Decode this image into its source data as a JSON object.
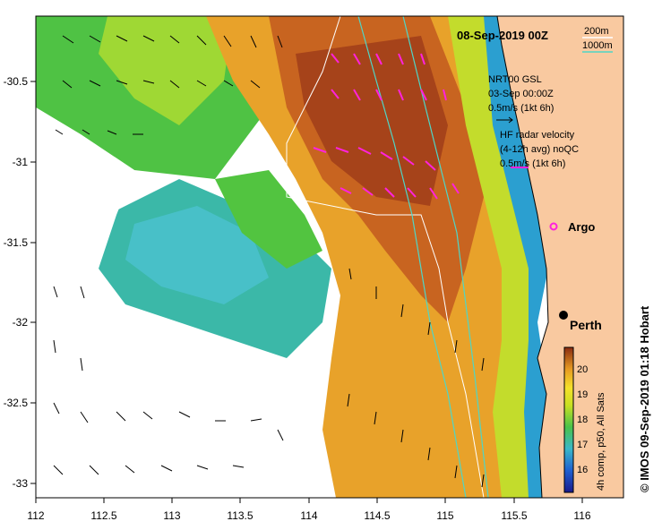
{
  "title": "08-Sep-2019 00Z",
  "depth_legend": {
    "label_200": "200m",
    "label_1000": "1000m",
    "color_200": "#ffffff",
    "color_1000": "#4fd6c6"
  },
  "model_legend": {
    "line1": "NRT00 GSL",
    "line2": "03-Sep 00:00Z",
    "line3": "0.5m/s (1kt 6h)"
  },
  "radar_legend": {
    "line1": "HF radar velocity",
    "line2": "(4-12h avg) noQC",
    "line3": "0.5m/s (1kt 6h)",
    "arrow_color": "#ff22dd"
  },
  "argo_label": "Argo",
  "city_label": "Perth",
  "credit": "© IMOS 09-Sep-2019 01:18 Hobart",
  "colorbar": {
    "label": "4h comp, p50, All Sats",
    "ticks": [
      "20",
      "19",
      "18",
      "17",
      "16"
    ],
    "min": 15.5,
    "max": 20.5
  },
  "axes": {
    "x_ticks": [
      "112",
      "112.5",
      "113",
      "113.5",
      "114",
      "114.5",
      "115",
      "115.5",
      "116"
    ],
    "y_ticks": [
      "-30.5",
      "-31",
      "-31.5",
      "-32",
      "-32.5",
      "-33"
    ],
    "xlim": [
      112,
      116.3
    ],
    "ylim": [
      -33.1,
      -30.05
    ]
  },
  "colors": {
    "land": "#f9c9a0",
    "coast": "#000000"
  }
}
